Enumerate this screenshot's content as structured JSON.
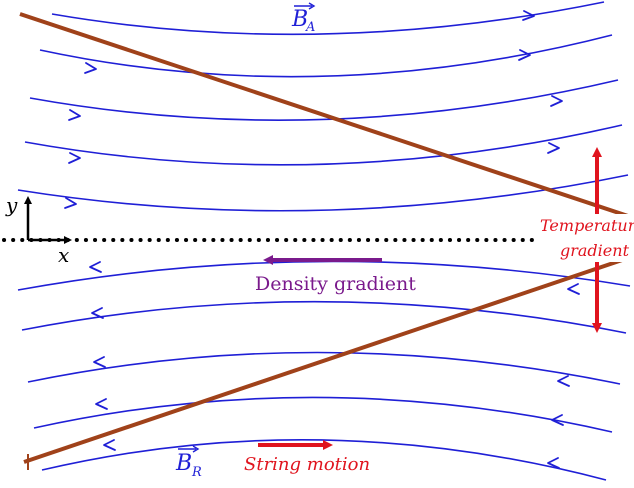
{
  "field_labels": {
    "upper_symbol": "B",
    "upper_subscript": "A",
    "lower_symbol": "B",
    "lower_subscript": "R"
  },
  "axes": {
    "y_label": "y",
    "x_label": "x"
  },
  "annotations": {
    "density": "Density gradient",
    "temperature_line1": "Temperature",
    "temperature_line2": "gradient",
    "string_motion": "String motion"
  },
  "colors": {
    "field_lines": "#1f1fd6",
    "strings": "#a0421a",
    "density_arrow": "#7a1a8c",
    "temperature_arrow": "#e0141e",
    "motion_arrow": "#e0141e",
    "midline": "#000000"
  }
}
